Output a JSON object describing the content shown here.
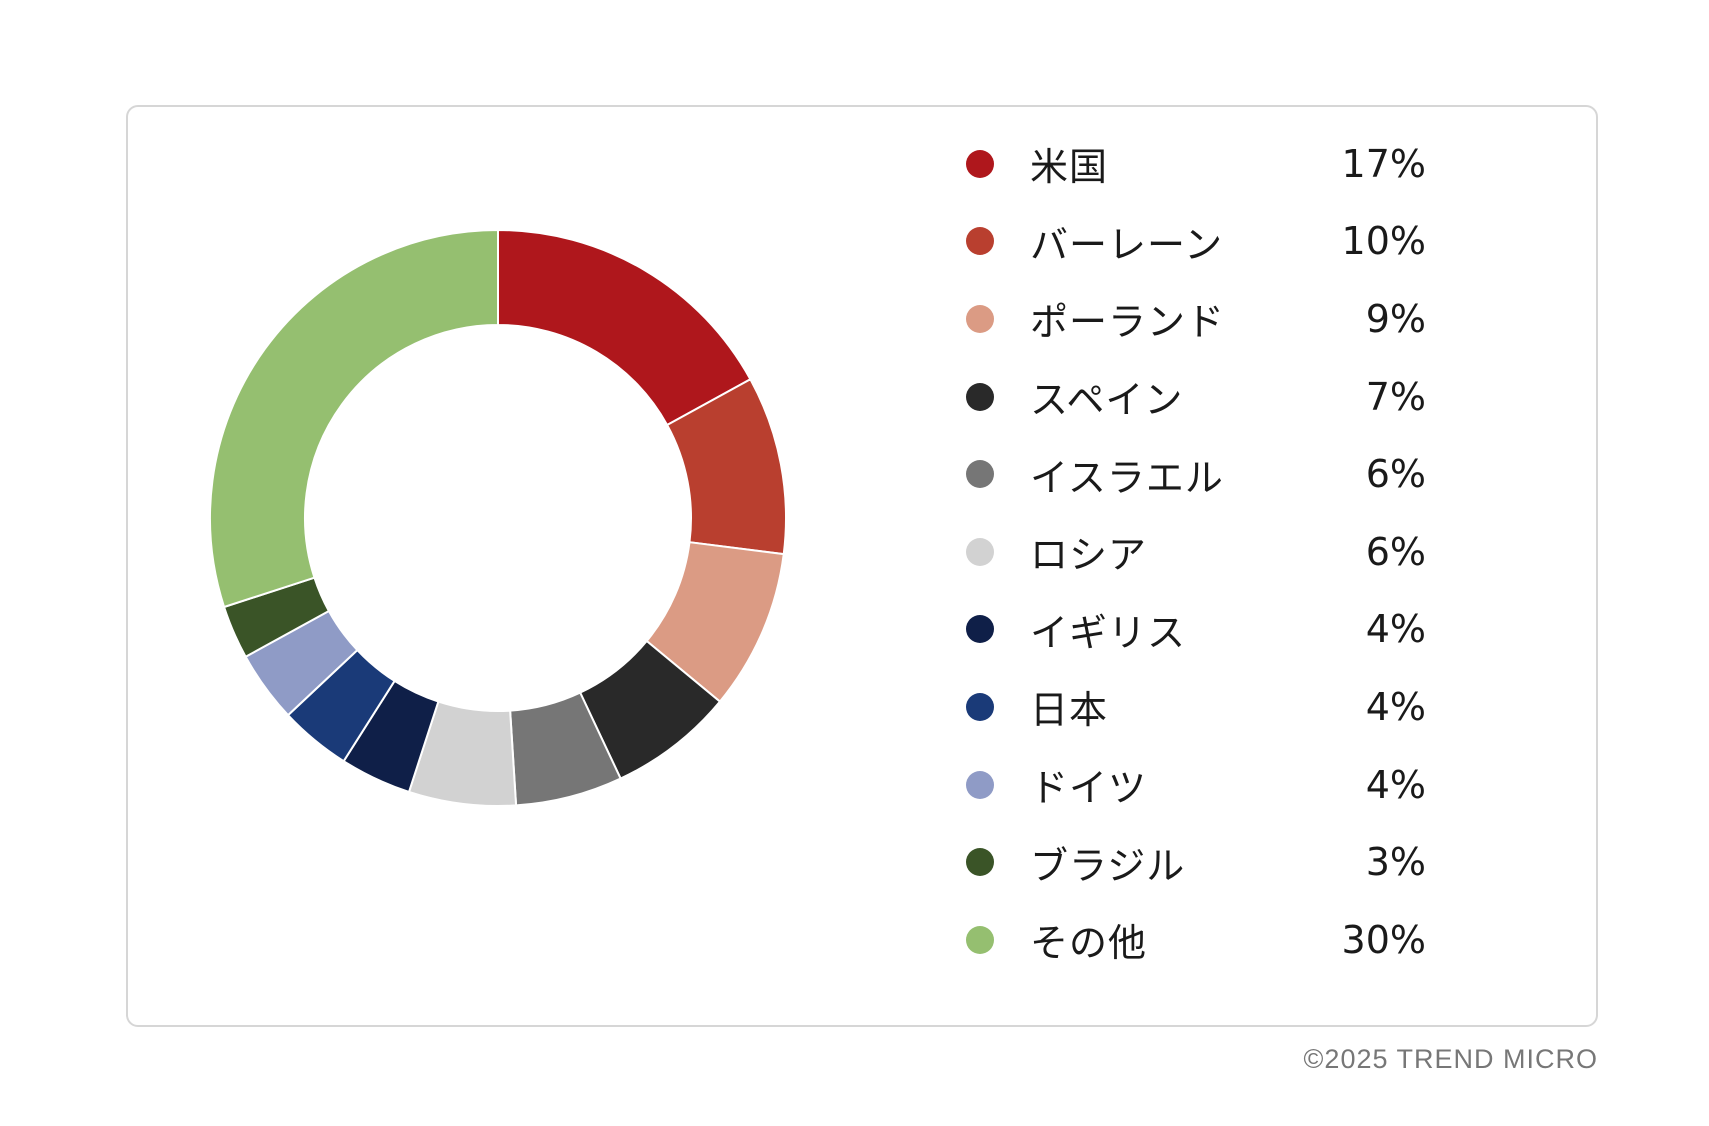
{
  "chart_data": {
    "type": "pie",
    "donut": true,
    "start": "top",
    "direction": "clockwise",
    "legend_position": "right",
    "categories": [
      "米国",
      "バーレーン",
      "ポーランド",
      "スペイン",
      "イスラエル",
      "ロシア",
      "イギリス",
      "日本",
      "ドイツ",
      "ブラジル",
      "その他"
    ],
    "values": [
      17,
      10,
      9,
      7,
      6,
      6,
      4,
      4,
      4,
      3,
      30
    ],
    "value_labels": [
      "17%",
      "10%",
      "9%",
      "7%",
      "6%",
      "6%",
      "4%",
      "4%",
      "4%",
      "3%",
      "30%"
    ],
    "unit": "%",
    "colors": [
      "#af171c",
      "#b93f2f",
      "#db9b84",
      "#292929",
      "#767676",
      "#d2d2d2",
      "#0f1f48",
      "#1a3a78",
      "#8f9bc6",
      "#3a5427",
      "#95bf70"
    ]
  },
  "footer": {
    "copyright": "©2025 TREND MICRO"
  }
}
